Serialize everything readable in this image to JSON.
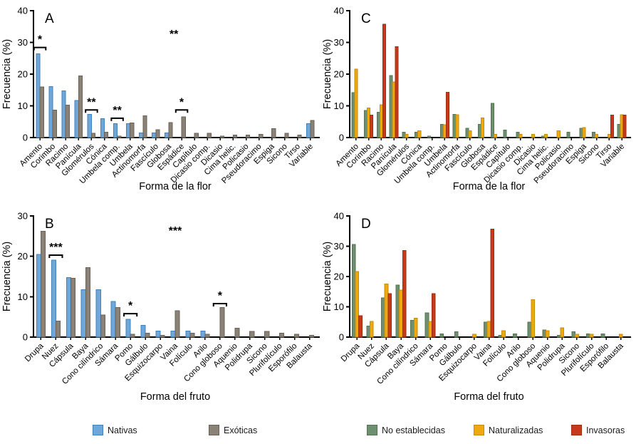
{
  "figure": {
    "ylabel": "Frecuencia (%)",
    "xlabel_flower": "Forma de la flor",
    "xlabel_fruit": "Forma del fruto"
  },
  "colors": {
    "Nativas": {
      "fill": "#6FA7D9",
      "stroke": "#3F82BC"
    },
    "Exóticas": {
      "fill": "#8A8177",
      "stroke": "#6A6257"
    },
    "No establecidas": {
      "fill": "#6E8F72",
      "stroke": "#53744F"
    },
    "Naturalizadas": {
      "fill": "#EDA90F",
      "stroke": "#C78C08"
    },
    "Invasoras": {
      "fill": "#C63A1B",
      "stroke": "#A02D10"
    }
  },
  "legend": {
    "items": [
      {
        "label": "Nativas"
      },
      {
        "label": "Exóticas"
      },
      {
        "label": "No establecidas"
      },
      {
        "label": "Naturalizadas"
      },
      {
        "label": "Invasoras"
      }
    ]
  },
  "chart_data": [
    {
      "panel": "A",
      "type": "bar",
      "ylabel": "Frecuencia (%)",
      "xlabel": "Forma de la flor",
      "ylim": [
        0,
        40
      ],
      "yticks": [
        0,
        10,
        20,
        30,
        40
      ],
      "categories": [
        "Amento",
        "Corimbo",
        "Racimo",
        "Panícula",
        "Glomérulos",
        "Cónica",
        "Umbela comp.",
        "Umbela",
        "Actinomorfa",
        "Fascículo",
        "Globosa",
        "Espádice",
        "Capítulo",
        "Dicasio comp.",
        "Dicasio",
        "Cima helic.",
        "Policasio",
        "Pseudoracimo",
        "Espiga",
        "Sicono",
        "Tirso",
        "Variable"
      ],
      "series": [
        {
          "name": "Nativas",
          "values": [
            26.4,
            16.1,
            14.7,
            11.7,
            7.3,
            5.9,
            4.4,
            4.4,
            1.5,
            1.5,
            1.5,
            0,
            0,
            0,
            0,
            0,
            0,
            0,
            0,
            0,
            0,
            4.4
          ]
        },
        {
          "name": "Exóticas",
          "values": [
            16.0,
            8.7,
            10.2,
            19.4,
            1.4,
            1.7,
            0.4,
            4.6,
            6.9,
            2.5,
            4.7,
            6.5,
            1.4,
            1.4,
            0.4,
            0.8,
            0.8,
            1.0,
            2.8,
            1.4,
            0.8,
            5.4
          ]
        }
      ],
      "annotations": [
        {
          "style": "bracket",
          "cat": 0,
          "label": "*",
          "y": 28.4
        },
        {
          "style": "bracket",
          "cat": 4,
          "label": "**",
          "y": 8.7
        },
        {
          "style": "bracket",
          "cat": 6,
          "label": "**",
          "y": 6.1
        },
        {
          "style": "bracket",
          "cat": 11,
          "label": "*",
          "y": 8.7
        },
        {
          "style": "stars",
          "cat": 10.4,
          "label": "**",
          "y": 32.8
        }
      ]
    },
    {
      "panel": "B",
      "type": "bar",
      "ylabel": "Frecuencia (%)",
      "xlabel": "Forma del fruto",
      "ylim": [
        0,
        30
      ],
      "yticks": [
        0,
        10,
        20,
        30
      ],
      "categories": [
        "Drupa",
        "Nuez",
        "Cápsula",
        "Baya",
        "Cono cilíndrico",
        "Sámara",
        "Pomo",
        "Gálbulo",
        "Esquizocarpo",
        "Vaina",
        "Folículo",
        "Arilo",
        "Cono globoso",
        "Aquenio",
        "Polidrupa",
        "Sicono",
        "Plurifolículo",
        "Esporófilo",
        "Balausta"
      ],
      "series": [
        {
          "name": "Nativas",
          "values": [
            20.5,
            19.1,
            14.7,
            11.7,
            11.7,
            8.8,
            4.4,
            2.9,
            1.5,
            1.5,
            1.5,
            1.5,
            0,
            0,
            0,
            0,
            0,
            0,
            0
          ]
        },
        {
          "name": "Exóticas",
          "values": [
            26.2,
            4.0,
            14.6,
            17.2,
            5.5,
            7.3,
            0.7,
            1.0,
            0.4,
            6.5,
            1.0,
            0.7,
            7.3,
            2.2,
            1.4,
            1.4,
            1.0,
            0.7,
            0.4
          ]
        }
      ],
      "annotations": [
        {
          "style": "bracket",
          "cat": 1,
          "label": "***",
          "y": 20.3
        },
        {
          "style": "bracket",
          "cat": 6,
          "label": "*",
          "y": 5.8
        },
        {
          "style": "bracket",
          "cat": 12,
          "label": "*",
          "y": 8.3
        },
        {
          "style": "stars",
          "cat": 9.0,
          "label": "***",
          "y": 26.5
        }
      ]
    },
    {
      "panel": "C",
      "type": "bar",
      "ylabel": "Frecuencia (%)",
      "xlabel": "Forma de la flor",
      "ylim": [
        0,
        40
      ],
      "yticks": [
        0,
        10,
        20,
        30,
        40
      ],
      "categories": [
        "Amento",
        "Corimbo",
        "Racimo",
        "Panícula",
        "Glomérulos",
        "Cónica",
        "Umbela comp.",
        "Umbela",
        "Actinomorfa",
        "Fascículo",
        "Globosa",
        "Espádice",
        "Capítulo",
        "Dicasio comp.",
        "Dicasio",
        "Cima helic.",
        "Policasio",
        "Pseudoracimo",
        "Espiga",
        "Sicono",
        "Tirso",
        "Variable"
      ],
      "series": [
        {
          "name": "No establecidas",
          "values": [
            14.2,
            8.5,
            8.0,
            19.6,
            1.7,
            1.7,
            0.5,
            4.2,
            7.3,
            2.9,
            4.2,
            10.8,
            2.4,
            1.7,
            0,
            0.5,
            0,
            1.7,
            2.9,
            1.7,
            0,
            4.2
          ]
        },
        {
          "name": "Naturalizadas",
          "values": [
            21.6,
            9.3,
            10.3,
            17.5,
            1.0,
            2.1,
            0,
            4.1,
            7.2,
            2.1,
            6.2,
            1.0,
            0,
            1.0,
            1.0,
            1.0,
            2.1,
            0,
            3.1,
            1.0,
            1.0,
            7.2
          ]
        },
        {
          "name": "Invasoras",
          "values": [
            0,
            7.1,
            35.7,
            28.6,
            0,
            0,
            0,
            14.3,
            0,
            0,
            0,
            0,
            0,
            0,
            0,
            0,
            0,
            0,
            0,
            0,
            7.1,
            7.1
          ]
        }
      ],
      "annotations": []
    },
    {
      "panel": "D",
      "type": "bar",
      "ylabel": "Frecuencia (%)",
      "xlabel": "Forma del fruto",
      "ylim": [
        0,
        40
      ],
      "yticks": [
        0,
        10,
        20,
        30,
        40
      ],
      "categories": [
        "Drupa",
        "Nuez",
        "Cápsula",
        "Baya",
        "Cono cilíndrico",
        "Sámara",
        "Pomo",
        "Gálbulo",
        "Esquizocarpo",
        "Vaina",
        "Folículo",
        "Arilo",
        "Cono globoso",
        "Aquenio",
        "Polidrupa",
        "Sicono",
        "Plurifolículo",
        "Esporófilo",
        "Balausta"
      ],
      "series": [
        {
          "name": "No establecidas",
          "values": [
            30.6,
            3.6,
            12.9,
            17.2,
            5.5,
            8.0,
            1.1,
            1.8,
            0,
            4.9,
            0.6,
            1.1,
            4.9,
            2.3,
            0.6,
            1.8,
            1.1,
            1.1,
            0
          ]
        },
        {
          "name": "Naturalizadas",
          "values": [
            21.6,
            5.2,
            17.5,
            15.5,
            6.2,
            5.2,
            0,
            0,
            1.0,
            5.2,
            2.1,
            0,
            12.4,
            2.1,
            3.1,
            1.0,
            1.0,
            0,
            1.0
          ]
        },
        {
          "name": "Invasoras",
          "values": [
            7.1,
            0,
            14.3,
            28.6,
            0,
            14.3,
            0,
            0,
            0,
            35.7,
            0,
            0,
            0,
            0,
            0,
            0,
            0,
            0,
            0
          ]
        }
      ],
      "annotations": []
    }
  ]
}
